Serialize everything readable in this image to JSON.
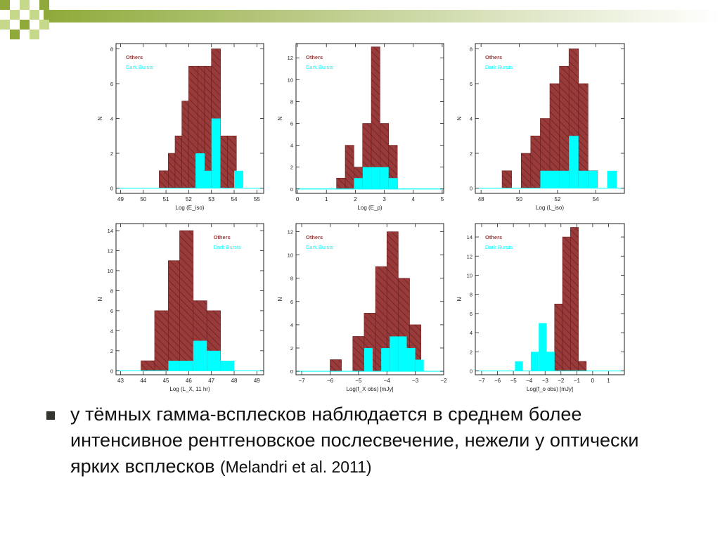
{
  "slide": {
    "bullet_text": "у тёмных гамма-всплесков наблюдается в среднем более интенсивное рентгеновское послесвечение, нежели у оптически ярких всплесков",
    "citation": "(Melandri et al. 2011)",
    "colors": {
      "header_green": "#8faa3a",
      "header_gradient_end": "#ffffff",
      "others": "#9a3b3b",
      "others_hatch": "#6b1e1e",
      "dark_bursts": "#00ffff",
      "axes": "#222222"
    }
  },
  "chart_data": [
    {
      "type": "histogram",
      "xlabel": "Log (E_iso)",
      "ylabel": "N",
      "xlim": [
        48.8,
        55.3
      ],
      "ylim": [
        -0.3,
        8.3
      ],
      "xticks": [
        49,
        50,
        51,
        52,
        53,
        54,
        55
      ],
      "yticks": [
        0,
        2,
        4,
        6,
        8
      ],
      "legend": [
        "Others",
        "Dark Bursts"
      ],
      "legend_position": "top-left",
      "series": [
        {
          "name": "Others",
          "bin_edges": [
            50.7,
            51.1,
            51.4,
            51.7,
            52.0,
            52.4,
            52.7,
            53.0,
            53.4,
            53.7,
            54.1
          ],
          "values": [
            1,
            2,
            3,
            5,
            7,
            7,
            7,
            8,
            3,
            3
          ]
        },
        {
          "name": "Dark Bursts",
          "bin_edges": [
            52.3,
            52.7,
            53.0,
            53.4,
            53.7,
            54.0,
            54.4
          ],
          "values": [
            2,
            1,
            4,
            0,
            0,
            1
          ]
        }
      ]
    },
    {
      "type": "histogram",
      "xlabel": "Log (E_p)",
      "ylabel": "N",
      "xlim": [
        -0.05,
        5.05
      ],
      "ylim": [
        -0.4,
        13.3
      ],
      "xticks": [
        0,
        1,
        2,
        3,
        4,
        5
      ],
      "yticks": [
        0,
        2,
        4,
        6,
        8,
        10,
        12
      ],
      "legend": [
        "Others",
        "Dark Bursts"
      ],
      "legend_position": "top-left",
      "series": [
        {
          "name": "Others",
          "bin_edges": [
            1.35,
            1.65,
            1.95,
            2.25,
            2.55,
            2.85,
            3.15,
            3.45
          ],
          "values": [
            1,
            4,
            2,
            6,
            13,
            6,
            4
          ]
        },
        {
          "name": "Dark Bursts",
          "bin_edges": [
            1.95,
            2.25,
            2.55,
            2.85,
            3.15,
            3.45
          ],
          "values": [
            1,
            2,
            2,
            2,
            1
          ]
        }
      ]
    },
    {
      "type": "histogram",
      "xlabel": "Log (L_iso)",
      "ylabel": "N",
      "xlim": [
        47.7,
        55.5
      ],
      "ylim": [
        -0.3,
        8.3
      ],
      "xticks": [
        48,
        50,
        52,
        54
      ],
      "yticks": [
        0,
        2,
        4,
        6,
        8
      ],
      "legend": [
        "Others",
        "Dark Bursts"
      ],
      "legend_position": "top-left",
      "series": [
        {
          "name": "Others",
          "bin_edges": [
            49.1,
            49.6,
            50.1,
            50.6,
            51.1,
            51.6,
            52.1,
            52.6,
            53.1,
            53.6,
            54.1
          ],
          "values": [
            1,
            0,
            2,
            3,
            4,
            6,
            7,
            8,
            6,
            1
          ]
        },
        {
          "name": "Dark Bursts",
          "bin_edges": [
            51.1,
            51.6,
            52.1,
            52.6,
            53.1,
            53.6,
            54.1,
            54.6,
            55.1
          ],
          "values": [
            1,
            1,
            1,
            3,
            1,
            1,
            0,
            1
          ]
        }
      ]
    },
    {
      "type": "histogram",
      "xlabel": "Log (L_X, 11 hr)",
      "ylabel": "N",
      "xlim": [
        42.8,
        49.3
      ],
      "ylim": [
        -0.4,
        14.7
      ],
      "xticks": [
        43,
        44,
        45,
        46,
        47,
        48,
        49
      ],
      "yticks": [
        0,
        2,
        4,
        6,
        8,
        10,
        12,
        14
      ],
      "legend": [
        "Others",
        "Dark Bursts"
      ],
      "legend_position": "top-right",
      "series": [
        {
          "name": "Others",
          "bin_edges": [
            43.9,
            44.5,
            45.1,
            45.6,
            46.2,
            46.8,
            47.4
          ],
          "values": [
            1,
            6,
            11,
            14,
            7,
            6
          ]
        },
        {
          "name": "Dark Bursts",
          "bin_edges": [
            45.1,
            45.6,
            46.2,
            46.8,
            47.4,
            48.0
          ],
          "values": [
            1,
            1,
            3,
            2,
            1
          ]
        }
      ]
    },
    {
      "type": "histogram",
      "xlabel": "Log(f_X obs) [mJy]",
      "ylabel": "N",
      "xlim": [
        -7.2,
        -2.0
      ],
      "ylim": [
        -0.3,
        12.7
      ],
      "xticks": [
        -7,
        -6,
        -5,
        -4,
        -3,
        -2
      ],
      "yticks": [
        0,
        2,
        4,
        6,
        8,
        10,
        12
      ],
      "legend": [
        "Others",
        "Dark Bursts"
      ],
      "legend_position": "top-left",
      "series": [
        {
          "name": "Others",
          "bin_edges": [
            -6.0,
            -5.6,
            -5.2,
            -4.8,
            -4.4,
            -4.0,
            -3.6,
            -3.2,
            -2.8
          ],
          "values": [
            1,
            0,
            3,
            5,
            9,
            12,
            8,
            4
          ]
        },
        {
          "name": "Dark Bursts",
          "bin_edges": [
            -4.8,
            -4.5,
            -4.2,
            -3.9,
            -3.6,
            -3.3,
            -3.0,
            -2.7
          ],
          "values": [
            2,
            0,
            2,
            3,
            3,
            2,
            1
          ]
        }
      ]
    },
    {
      "type": "histogram",
      "xlabel": "Log(f_o obs) [mJy]",
      "ylabel": "N",
      "xlim": [
        -7.4,
        2.0
      ],
      "ylim": [
        -0.4,
        15.4
      ],
      "xticks": [
        -7,
        -6,
        -5,
        -4,
        -3,
        -2,
        -1,
        0,
        1
      ],
      "yticks": [
        0,
        2,
        4,
        6,
        8,
        10,
        12,
        14
      ],
      "legend": [
        "Others",
        "Dark Bursts"
      ],
      "legend_position": "top-left",
      "series": [
        {
          "name": "Others",
          "bin_edges": [
            -2.4,
            -1.9,
            -1.4,
            -0.9,
            -0.4
          ],
          "values": [
            7,
            14,
            15,
            1
          ]
        },
        {
          "name": "Dark Bursts",
          "bin_edges": [
            -4.9,
            -4.4,
            -3.9,
            -3.4,
            -2.9,
            -2.4
          ],
          "values": [
            1,
            0,
            2,
            5,
            2
          ]
        }
      ]
    }
  ]
}
